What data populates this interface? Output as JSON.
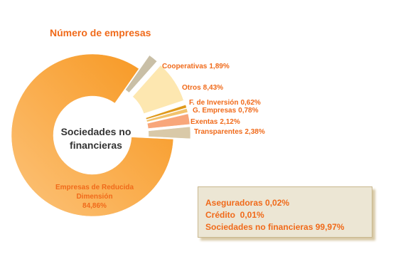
{
  "chart_data": {
    "type": "pie",
    "donut": true,
    "title": "Número de empresas",
    "center_label": "Sociedades no financieras",
    "categories": [
      "Cooperativas",
      "Otros",
      "F. de Inversión",
      "G. Empresas",
      "Exentas",
      "Transparentes",
      "Empresas de Reducida Dimensión"
    ],
    "values": [
      1.89,
      8.43,
      0.62,
      0.78,
      2.12,
      2.38,
      84.86
    ],
    "value_labels": [
      "1,89%",
      "8,43%",
      "0,62%",
      "0,78%",
      "2,12%",
      "2,38%",
      "84,86%"
    ],
    "colors": [
      "#c9bfa6",
      "#fde7b0",
      "#e09a1c",
      "#f2c36c",
      "#f8a67a",
      "#d9c9a8",
      "#fbaa48"
    ],
    "exploded": [
      true,
      true,
      true,
      true,
      true,
      true,
      false
    ]
  },
  "note": {
    "lines": [
      "Aseguradoras 0,02%",
      "Crédito  0,01%",
      "Sociedades no financieras 99,97%"
    ]
  }
}
